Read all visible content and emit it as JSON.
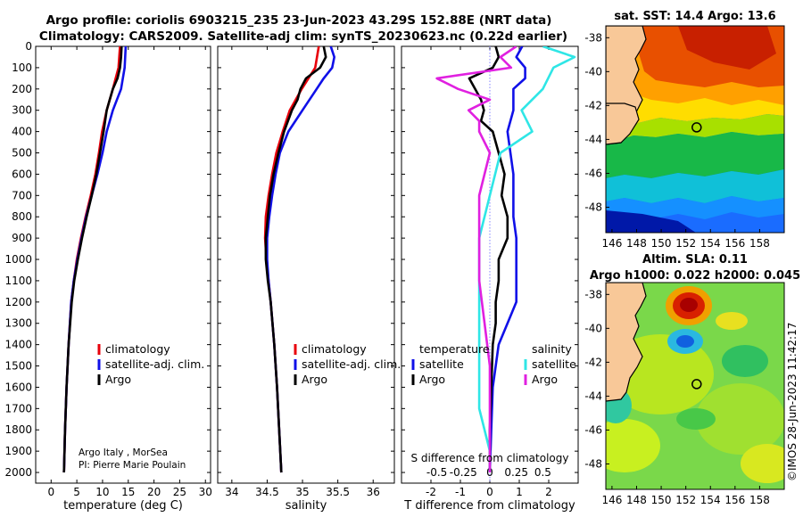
{
  "titles": {
    "line1": "Argo profile: coriolis 6903215_235 23-Jun-2023 43.29S 152.88E (NRT data)",
    "line2": "Climatology: CARS2009. Satellite-adj clim: synTS_20230623.nc (0.22d earlier)"
  },
  "credit": "©IMOS 28-Jun-2023 11:42:17",
  "colors": {
    "climatology": "#e8000b",
    "satellite": "#1010e8",
    "argo": "#000000",
    "sat_salinity": "#2fe6e6",
    "argo_salinity": "#e020e0"
  },
  "chart_data": [
    {
      "type": "line",
      "id": "temperature",
      "xlabel": "temperature (deg C)",
      "ylabel": "",
      "xlim": [
        -3,
        31
      ],
      "ylim": [
        2050,
        0
      ],
      "xticks": [
        0,
        5,
        10,
        15,
        20,
        25,
        30
      ],
      "xtick_labels": [
        "0",
        "5",
        "10",
        "15",
        "20",
        "25",
        "30"
      ],
      "yticks": [
        0,
        100,
        200,
        300,
        400,
        500,
        600,
        700,
        800,
        900,
        1000,
        1100,
        1200,
        1300,
        1400,
        1500,
        1600,
        1700,
        1800,
        1900,
        2000
      ],
      "legend": [
        "climatology",
        "satellite-adj. clim.",
        "Argo"
      ],
      "annotation": [
        "Argo Italy , MorSea",
        "PI: Pierre Marie Poulain"
      ],
      "series": [
        {
          "name": "climatology",
          "color_key": "climatology",
          "depth": [
            0,
            100,
            200,
            300,
            400,
            500,
            600,
            700,
            800,
            900,
            1000,
            1100,
            1200,
            1400,
            1600,
            1800,
            2000
          ],
          "values": [
            13.4,
            13.1,
            12.0,
            10.8,
            9.9,
            9.3,
            8.6,
            7.7,
            6.7,
            5.8,
            5.0,
            4.4,
            3.9,
            3.4,
            3.0,
            2.7,
            2.5
          ]
        },
        {
          "name": "satellite-adj. clim.",
          "color_key": "satellite",
          "depth": [
            0,
            100,
            200,
            300,
            400,
            500,
            600,
            700,
            800,
            900,
            1000,
            1100,
            1200,
            1400,
            1600,
            1800,
            2000
          ],
          "values": [
            14.5,
            14.3,
            13.6,
            12.0,
            10.8,
            10.0,
            9.0,
            7.9,
            6.8,
            5.9,
            5.1,
            4.4,
            3.9,
            3.4,
            3.0,
            2.7,
            2.5
          ]
        },
        {
          "name": "Argo",
          "color_key": "argo",
          "depth": [
            0,
            50,
            100,
            150,
            200,
            250,
            300,
            400,
            500,
            600,
            700,
            800,
            900,
            1000,
            1100,
            1200,
            1400,
            1600,
            1800,
            2000
          ],
          "values": [
            13.7,
            13.6,
            13.4,
            12.9,
            12.0,
            11.4,
            10.8,
            10.2,
            9.5,
            8.8,
            7.9,
            6.9,
            6.0,
            5.2,
            4.5,
            4.0,
            3.4,
            3.0,
            2.7,
            2.5
          ]
        }
      ]
    },
    {
      "type": "line",
      "id": "salinity",
      "xlabel": "salinity",
      "ylabel": "",
      "xlim": [
        33.8,
        36.3
      ],
      "ylim": [
        2050,
        0
      ],
      "xticks": [
        34,
        34.5,
        35,
        35.5,
        36
      ],
      "xtick_labels": [
        "34",
        "34.5",
        "35",
        "35.5",
        "36"
      ],
      "legend": [
        "climatology",
        "satellite-adj. clim.",
        "Argo"
      ],
      "series": [
        {
          "name": "climatology",
          "color_key": "climatology",
          "depth": [
            0,
            100,
            200,
            300,
            400,
            500,
            600,
            700,
            800,
            900,
            1000,
            1100,
            1200,
            1400,
            1600,
            1800,
            2000
          ],
          "values": [
            35.23,
            35.18,
            34.99,
            34.82,
            34.72,
            34.63,
            34.57,
            34.52,
            34.48,
            34.47,
            34.49,
            34.52,
            34.55,
            34.6,
            34.64,
            34.67,
            34.7
          ]
        },
        {
          "name": "satellite-adj. clim.",
          "color_key": "satellite",
          "depth": [
            0,
            50,
            100,
            150,
            200,
            300,
            400,
            500,
            600,
            700,
            800,
            900,
            1000,
            1100,
            1200,
            1400,
            1600,
            1800,
            2000
          ],
          "values": [
            35.4,
            35.45,
            35.42,
            35.3,
            35.2,
            35.0,
            34.8,
            34.68,
            34.62,
            34.57,
            34.53,
            34.5,
            34.5,
            34.52,
            34.55,
            34.6,
            34.64,
            34.67,
            34.7
          ]
        },
        {
          "name": "Argo",
          "color_key": "argo",
          "depth": [
            0,
            50,
            100,
            150,
            200,
            250,
            300,
            400,
            500,
            600,
            700,
            800,
            900,
            1000,
            1100,
            1200,
            1400,
            1600,
            1800,
            2000
          ],
          "values": [
            35.3,
            35.33,
            35.25,
            35.05,
            34.97,
            34.93,
            34.85,
            34.74,
            34.66,
            34.59,
            34.54,
            34.51,
            34.48,
            34.48,
            34.51,
            34.55,
            34.6,
            34.64,
            34.67,
            34.7
          ]
        }
      ]
    },
    {
      "type": "line",
      "id": "difference",
      "xlabel": "T difference from climatology",
      "xlabel_top": "S difference from climatology",
      "xlim": [
        -3,
        3
      ],
      "ylim": [
        2050,
        0
      ],
      "xticks": [
        -2,
        -1,
        0,
        1,
        2
      ],
      "xtick_labels": [
        "-2",
        "-1",
        "0",
        "1",
        "2"
      ],
      "s_ticks": [
        -0.5,
        -0.25,
        0,
        0.25,
        0.5
      ],
      "s_tick_labels": [
        "-0.5",
        "-0.25",
        "0",
        "0.25",
        "0.5"
      ],
      "legend_temperature": {
        "title": "temperature",
        "items": [
          "satellite",
          "Argo"
        ]
      },
      "legend_salinity": {
        "title": "salinity",
        "items": [
          "satellite",
          "Argo"
        ]
      },
      "series": [
        {
          "name": "temperature satellite",
          "color_key": "satellite",
          "depth": [
            0,
            50,
            100,
            150,
            200,
            300,
            400,
            500,
            600,
            700,
            800,
            900,
            1000,
            1100,
            1200,
            1300,
            1400,
            1600,
            1800,
            2000
          ],
          "values": [
            1.1,
            0.9,
            1.2,
            1.2,
            0.8,
            0.8,
            0.6,
            0.7,
            0.8,
            0.8,
            0.8,
            0.9,
            0.9,
            0.9,
            0.9,
            0.6,
            0.3,
            0.1,
            0.05,
            0.0
          ]
        },
        {
          "name": "temperature Argo",
          "color_key": "argo",
          "depth": [
            0,
            50,
            100,
            150,
            200,
            250,
            300,
            350,
            400,
            500,
            600,
            700,
            800,
            900,
            1000,
            1100,
            1200,
            1300,
            1400,
            1600,
            1800,
            2000
          ],
          "values": [
            0.2,
            0.3,
            0.1,
            -0.7,
            -0.5,
            -0.3,
            -0.2,
            -0.3,
            0.1,
            0.3,
            0.5,
            0.4,
            0.6,
            0.6,
            0.3,
            0.3,
            0.2,
            0.2,
            0.1,
            0.05,
            0.0,
            0.0
          ]
        },
        {
          "name": "salinity satellite",
          "color_key": "sat_salinity",
          "depth": [
            0,
            50,
            100,
            200,
            300,
            400,
            500,
            700,
            900,
            1100,
            1300,
            1500,
            1700,
            1900,
            2000
          ],
          "values": [
            0.5,
            0.8,
            0.6,
            0.5,
            0.3,
            0.4,
            0.1,
            0.0,
            -0.1,
            -0.1,
            -0.1,
            -0.1,
            -0.1,
            0.0,
            0.0
          ]
        },
        {
          "name": "salinity Argo",
          "color_key": "argo_salinity",
          "depth": [
            0,
            50,
            100,
            150,
            200,
            250,
            300,
            350,
            400,
            500,
            700,
            900,
            1100,
            1300,
            1500,
            1700,
            1900,
            2000
          ],
          "values": [
            0.25,
            0.1,
            0.2,
            -0.5,
            -0.3,
            0.0,
            -0.2,
            -0.1,
            -0.1,
            0.0,
            -0.1,
            -0.1,
            -0.1,
            -0.05,
            0.0,
            0.0,
            0.0,
            0.0
          ]
        }
      ]
    },
    {
      "type": "heatmap",
      "id": "sst-map",
      "title": "sat. SST: 14.4 Argo: 13.6",
      "xlim": [
        145.5,
        160
      ],
      "ylim": [
        -49.5,
        -37.3
      ],
      "xticks": [
        146,
        148,
        150,
        152,
        154,
        156,
        158
      ],
      "xtick_labels": [
        "146",
        "148",
        "150",
        "152",
        "154",
        "156",
        "158"
      ],
      "yticks": [
        -38,
        -40,
        -42,
        -44,
        -46,
        -48
      ],
      "ytick_labels": [
        "-38",
        "-40",
        "-42",
        "-44",
        "-46",
        "-48"
      ],
      "argo_marker": {
        "lon": 152.88,
        "lat": -43.29
      }
    },
    {
      "type": "heatmap",
      "id": "sla-map",
      "title_line1": "Altim. SLA: 0.11",
      "title_line2": "Argo h1000: 0.022 h2000: 0.045",
      "xlim": [
        145.5,
        160
      ],
      "ylim": [
        -49.5,
        -37.3
      ],
      "xticks": [
        146,
        148,
        150,
        152,
        154,
        156,
        158
      ],
      "xtick_labels": [
        "146",
        "148",
        "150",
        "152",
        "154",
        "156",
        "158"
      ],
      "yticks": [
        -38,
        -40,
        -42,
        -44,
        -46,
        -48
      ],
      "ytick_labels": [
        "-38",
        "-40",
        "-42",
        "-44",
        "-46",
        "-48"
      ],
      "argo_marker": {
        "lon": 152.88,
        "lat": -43.29
      }
    }
  ]
}
